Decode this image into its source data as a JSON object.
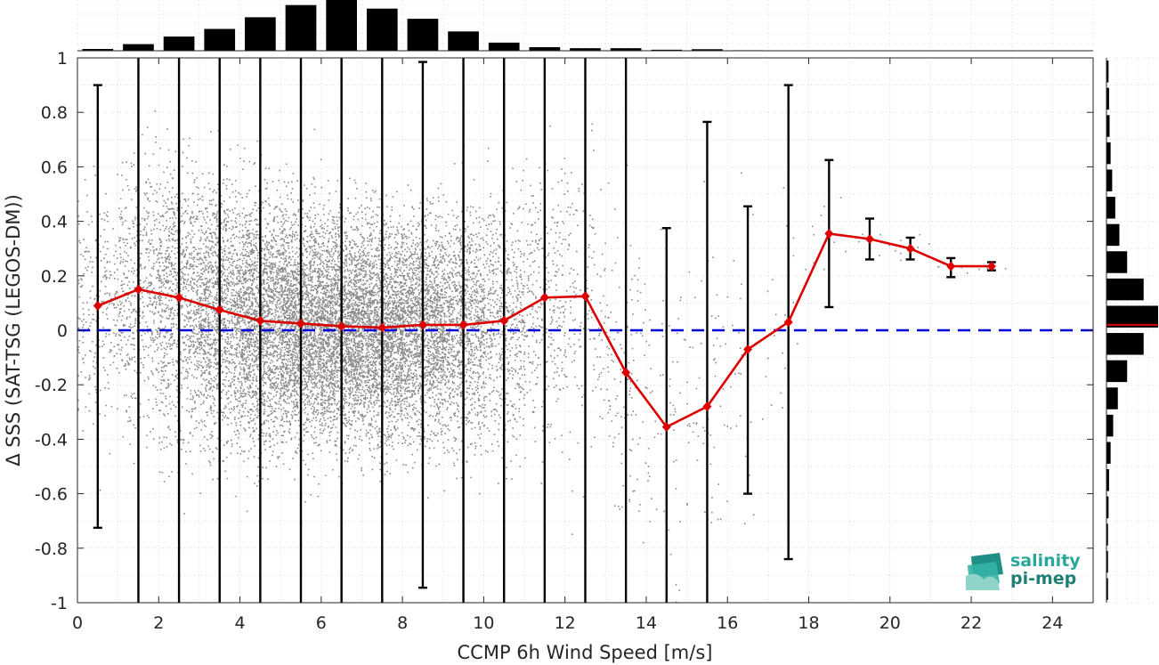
{
  "chart_data": {
    "type": "scatter",
    "xlabel": "CCMP 6h Wind Speed [m/s]",
    "ylabel": "Δ SSS (SAT-TSG (LEGOS-DM))",
    "xlim": [
      0,
      25
    ],
    "ylim": [
      -1,
      1
    ],
    "xticks": [
      0,
      2,
      4,
      6,
      8,
      10,
      12,
      14,
      16,
      18,
      20,
      22,
      24
    ],
    "yticks": [
      -1,
      -0.8,
      -0.6,
      -0.4,
      -0.2,
      0,
      0.2,
      0.4,
      0.6,
      0.8,
      1
    ],
    "grid": true,
    "reference_line": {
      "y": 0,
      "color": "#0000dd",
      "style": "dashed"
    },
    "series": [
      {
        "kind": "binned-mean-with-errorbars",
        "color": "#dd0000",
        "x": [
          0.5,
          1.5,
          2.5,
          3.5,
          4.5,
          5.5,
          6.5,
          7.5,
          8.5,
          9.5,
          10.5,
          11.5,
          12.5,
          13.5,
          14.5,
          15.5,
          16.5,
          17.5,
          18.5,
          19.5,
          20.5,
          21.5,
          22.5
        ],
        "y": [
          0.09,
          0.15,
          0.12,
          0.075,
          0.035,
          0.025,
          0.015,
          0.01,
          0.02,
          0.02,
          0.035,
          0.12,
          0.125,
          -0.155,
          -0.355,
          -0.28,
          -0.07,
          0.03,
          0.355,
          0.335,
          0.3,
          0.235,
          0.235
        ],
        "err_low": [
          -0.725,
          -1.0,
          -1.0,
          -1.0,
          -1.0,
          -1.0,
          -1.0,
          -1.0,
          -0.945,
          -1.0,
          -1.0,
          -1.0,
          -1.0,
          -1.0,
          -1.0,
          -1.0,
          -0.6,
          -0.84,
          0.085,
          0.26,
          0.26,
          0.195,
          0.22
        ],
        "err_high": [
          0.9,
          1.0,
          1.0,
          1.0,
          1.0,
          1.0,
          1.0,
          1.0,
          0.985,
          1.0,
          1.0,
          1.0,
          1.0,
          1.0,
          0.375,
          0.765,
          0.455,
          0.9,
          0.625,
          0.41,
          0.34,
          0.265,
          0.25
        ]
      }
    ],
    "scatter_cloud": {
      "color": "#808080",
      "description_density_peak_x": 6.5
    },
    "top_histogram": {
      "bin_centers": [
        0.5,
        1.5,
        2.5,
        3.5,
        4.5,
        5.5,
        6.5,
        7.5,
        8.5,
        9.5,
        10.5,
        11.5,
        12.5,
        13.5,
        14.5,
        15.5,
        16.5
      ],
      "relative_heights": [
        0.035,
        0.13,
        0.28,
        0.43,
        0.66,
        0.9,
        1.0,
        0.83,
        0.63,
        0.38,
        0.16,
        0.07,
        0.05,
        0.05,
        0.02,
        0.03,
        0.01
      ]
    },
    "right_histogram": {
      "bin_centers": [
        0.95,
        0.85,
        0.75,
        0.65,
        0.55,
        0.45,
        0.35,
        0.25,
        0.15,
        0.05,
        -0.05,
        -0.15,
        -0.25,
        -0.35,
        -0.45,
        -0.55,
        -0.65,
        -0.75,
        -0.85,
        -0.95
      ],
      "relative_widths": [
        0.04,
        0.05,
        0.06,
        0.08,
        0.11,
        0.17,
        0.25,
        0.4,
        0.72,
        1.0,
        0.72,
        0.4,
        0.22,
        0.13,
        0.08,
        0.05,
        0.04,
        0.03,
        0.03,
        0.03
      ],
      "mean_line": {
        "y": 0.02,
        "color": "#dd0000"
      }
    }
  },
  "logo": {
    "line1": "salinity",
    "line2": "pi-mep"
  }
}
